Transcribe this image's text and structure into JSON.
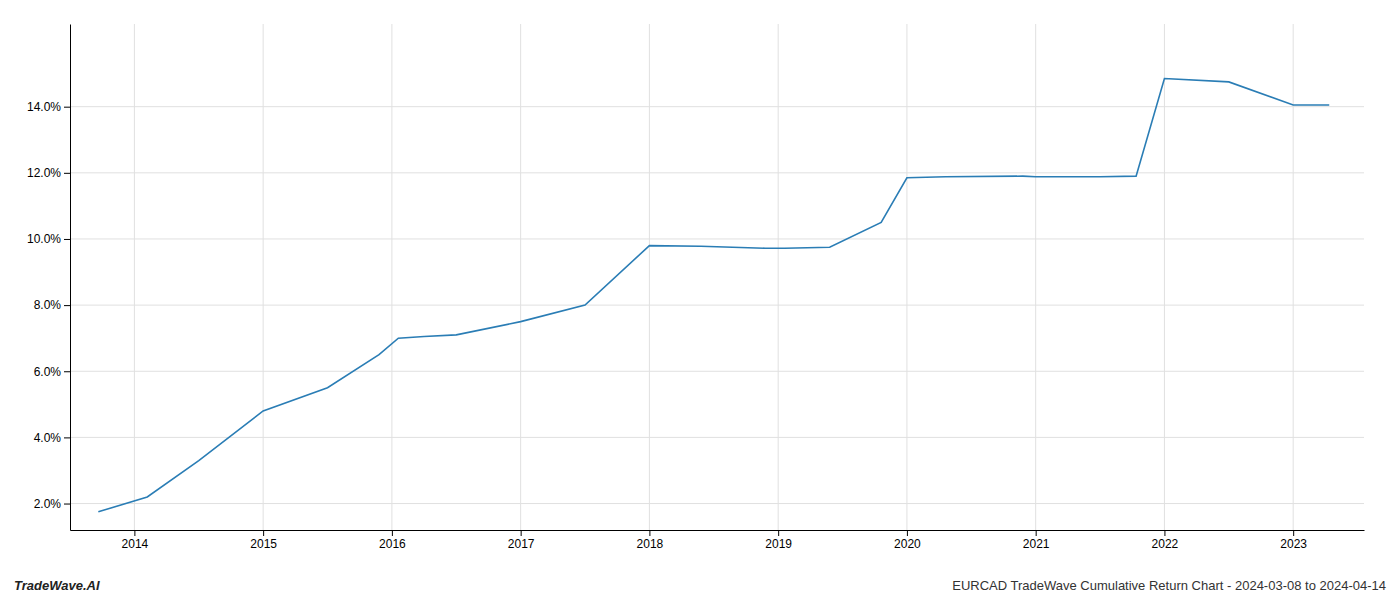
{
  "chart_data": {
    "type": "line",
    "x": [
      2013.72,
      2014.1,
      2014.5,
      2015.0,
      2015.5,
      2015.9,
      2016.05,
      2016.25,
      2016.5,
      2017.0,
      2017.5,
      2018.0,
      2018.4,
      2018.9,
      2019.05,
      2019.4,
      2019.8,
      2020.0,
      2020.3,
      2020.9,
      2021.0,
      2021.5,
      2021.78,
      2022.0,
      2022.5,
      2023.0,
      2023.28
    ],
    "values": [
      1.75,
      2.2,
      3.3,
      4.8,
      5.5,
      6.5,
      7.0,
      7.05,
      7.1,
      7.5,
      8.0,
      9.8,
      9.78,
      9.72,
      9.72,
      9.75,
      10.5,
      11.85,
      11.88,
      11.9,
      11.88,
      11.88,
      11.9,
      14.85,
      14.75,
      14.05,
      14.05
    ],
    "color": "#2a7db5",
    "xlim": [
      2013.5,
      2023.55
    ],
    "ylim": [
      1.2,
      16.5
    ],
    "xticks": [
      2014,
      2015,
      2016,
      2017,
      2018,
      2019,
      2020,
      2021,
      2022,
      2023
    ],
    "yticks": [
      {
        "value": 2.0,
        "label": "2.0%"
      },
      {
        "value": 4.0,
        "label": "4.0%"
      },
      {
        "value": 6.0,
        "label": "6.0%"
      },
      {
        "value": 8.0,
        "label": "8.0%"
      },
      {
        "value": 10.0,
        "label": "10.0%"
      },
      {
        "value": 12.0,
        "label": "12.0%"
      },
      {
        "value": 14.0,
        "label": "14.0%"
      }
    ],
    "grid": true,
    "annotations": [
      "TradeWave.AI",
      "EURCAD TradeWave Cumulative Return Chart - 2024-03-08 to 2024-04-14"
    ]
  }
}
